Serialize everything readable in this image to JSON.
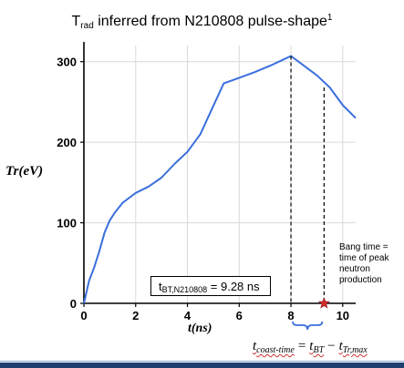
{
  "title": {
    "main": "T",
    "sub": "rad",
    "rest": " inferred from N210808 pulse-shape",
    "sup": "1"
  },
  "chart_data": {
    "type": "line",
    "xlabel": "t(ns)",
    "ylabel": "Tr(eV)",
    "xlim": [
      0,
      10.5
    ],
    "ylim": [
      0,
      320
    ],
    "xticks": [
      "0",
      "2",
      "4",
      "6",
      "8",
      "10"
    ],
    "yticks": [
      "0",
      "100",
      "200",
      "300"
    ],
    "series": [
      {
        "color": "#3a6fdc",
        "x": [
          0,
          0.2,
          0.4,
          0.6,
          0.8,
          1.0,
          1.2,
          1.5,
          2.0,
          2.5,
          3.0,
          3.5,
          4.0,
          4.5,
          5.0,
          5.4,
          6.0,
          6.6,
          7.2,
          7.6,
          8.0,
          8.5,
          9.0,
          9.5,
          10.0,
          10.5
        ],
        "y": [
          0,
          28,
          45,
          65,
          88,
          103,
          113,
          125,
          137,
          145,
          156,
          173,
          188,
          210,
          245,
          273,
          280,
          287,
          295,
          301,
          307,
          295,
          283,
          268,
          246,
          230
        ]
      }
    ],
    "annotations": {
      "bt_label_main": "t",
      "bt_label_sub": "BT,N210808",
      "bt_label_value": " = 9.28 ns",
      "bang_time_note": "Bang time = time of peak neutron production",
      "peak_dashed_x": 8.0,
      "peak_dashed_y": 307,
      "bang_dashed_x": 9.28,
      "bang_dashed_y": 268,
      "bang_marker_x": 9.28,
      "bang_marker_y": 0,
      "marker_color": "#d22b2b",
      "brace_color": "#3a6fdc",
      "brace_x_range": [
        8.0,
        9.28
      ]
    }
  },
  "coast": {
    "t": "t",
    "coast_sub": "coast-time",
    "eq": "=",
    "bt_sub": "BT",
    "minus": "−",
    "trmax_sub": "Tr,max"
  }
}
